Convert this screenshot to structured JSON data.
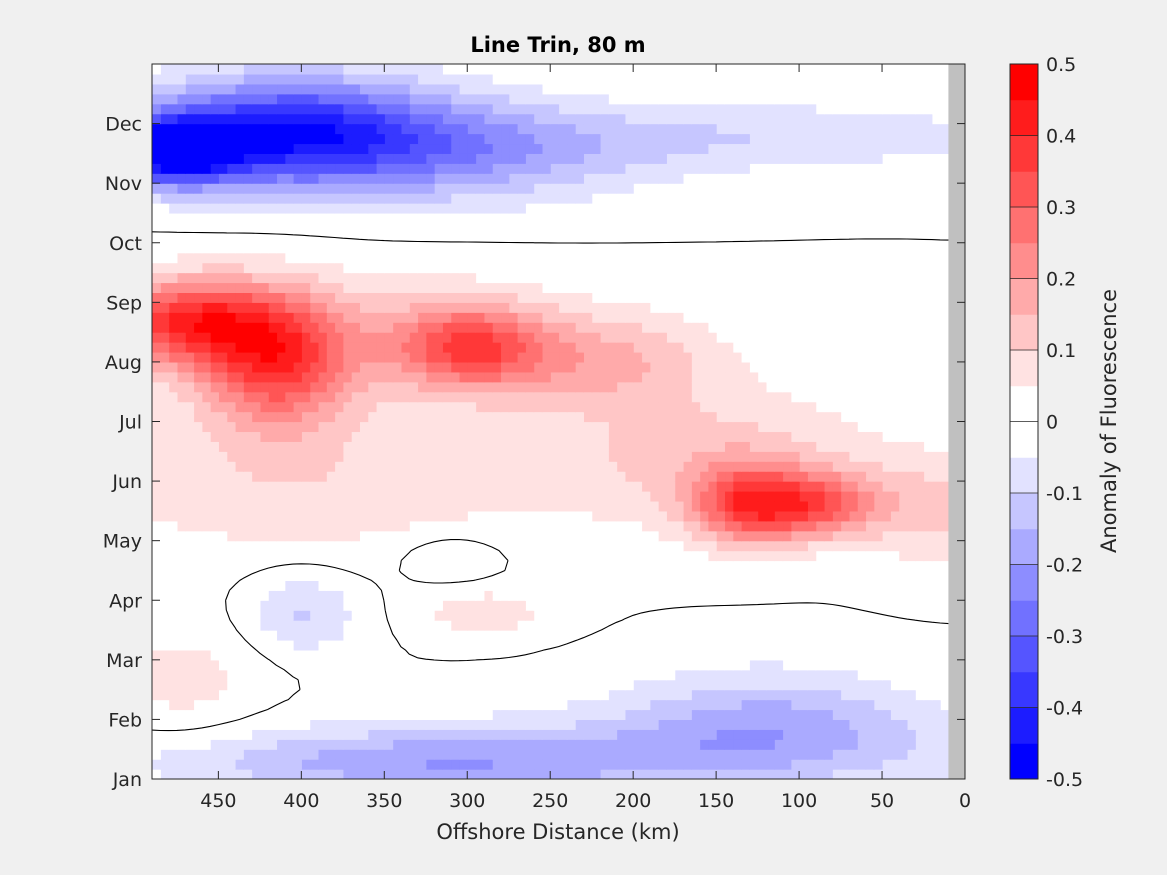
{
  "chart_data": {
    "type": "heatmap",
    "title": "Line Trin, 80 m",
    "xlabel": "Offshore Distance (km)",
    "ylabel": "",
    "x_reversed": true,
    "xlim": [
      0,
      490
    ],
    "x_ticks": [
      450,
      400,
      350,
      300,
      250,
      200,
      150,
      100,
      50,
      0
    ],
    "y_ticks": [
      "Jan",
      "Feb",
      "Mar",
      "Apr",
      "May",
      "Jun",
      "Jul",
      "Aug",
      "Sep",
      "Oct",
      "Nov",
      "Dec"
    ],
    "ylim_months": [
      1,
      13
    ],
    "colorbar": {
      "label": "Anomaly of Fluorescence",
      "range": [
        -0.5,
        0.5
      ],
      "tick_values": [
        0.5,
        0.4,
        0.3,
        0.2,
        0.1,
        0,
        -0.1,
        -0.2,
        -0.3,
        -0.4,
        -0.5
      ],
      "tick_labels": [
        "0.5",
        "0.4",
        "0.3",
        "0.2",
        "0.1",
        "0",
        "-0.1",
        "-0.2",
        "-0.3",
        "-0.4",
        "-0.5"
      ],
      "levels": [
        -0.5,
        -0.45,
        -0.4,
        -0.35,
        -0.3,
        -0.25,
        -0.2,
        -0.15,
        -0.1,
        -0.05,
        0.05,
        0.1,
        0.15,
        0.2,
        0.25,
        0.3,
        0.35,
        0.4,
        0.45,
        0.5
      ],
      "colors": [
        "#0000ff",
        "#1c1cff",
        "#3838ff",
        "#5555ff",
        "#7171ff",
        "#8d8dff",
        "#aaaaff",
        "#c6c6ff",
        "#e2e2ff",
        "#ffffff",
        "#ffe2e2",
        "#ffc6c6",
        "#ffaaaa",
        "#ff8d8d",
        "#ff7171",
        "#ff5555",
        "#ff3838",
        "#ff1c1c",
        "#ff0000"
      ]
    },
    "no_data_band_km": [
      0,
      10
    ],
    "zero_contour": true,
    "features": [
      {
        "x": 480,
        "y": 11.55,
        "value": -0.45,
        "sx": 40,
        "sy": 0.55
      },
      {
        "x": 420,
        "y": 11.85,
        "value": -0.28,
        "sx": 80,
        "sy": 0.9
      },
      {
        "x": 370,
        "y": 11.9,
        "value": -0.17,
        "sx": 100,
        "sy": 0.9
      },
      {
        "x": 300,
        "y": 11.4,
        "value": -0.13,
        "sx": 110,
        "sy": 0.8
      },
      {
        "x": 130,
        "y": 11.8,
        "value": -0.09,
        "sx": 180,
        "sy": 0.6
      },
      {
        "x": 470,
        "y": 8.7,
        "value": 0.32,
        "sx": 50,
        "sy": 0.7
      },
      {
        "x": 415,
        "y": 8.0,
        "value": 0.32,
        "sx": 45,
        "sy": 1.1
      },
      {
        "x": 300,
        "y": 8.25,
        "value": 0.28,
        "sx": 45,
        "sy": 0.7
      },
      {
        "x": 380,
        "y": 8.5,
        "value": 0.1,
        "sx": 150,
        "sy": 1.0
      },
      {
        "x": 220,
        "y": 8.0,
        "value": 0.14,
        "sx": 70,
        "sy": 0.8
      },
      {
        "x": 130,
        "y": 5.6,
        "value": 0.32,
        "sx": 35,
        "sy": 0.65
      },
      {
        "x": 85,
        "y": 5.6,
        "value": 0.24,
        "sx": 35,
        "sy": 0.55
      },
      {
        "x": 150,
        "y": 6.4,
        "value": 0.12,
        "sx": 100,
        "sy": 1.1
      },
      {
        "x": 20,
        "y": 5.5,
        "value": 0.11,
        "sx": 40,
        "sy": 0.9
      },
      {
        "x": 400,
        "y": 6.0,
        "value": 0.09,
        "sx": 150,
        "sy": 1.3
      },
      {
        "x": 470,
        "y": 2.6,
        "value": 0.07,
        "sx": 50,
        "sy": 1.1
      },
      {
        "x": 290,
        "y": 3.8,
        "value": 0.08,
        "sx": 40,
        "sy": 0.4
      },
      {
        "x": 320,
        "y": 1.25,
        "value": -0.14,
        "sx": 150,
        "sy": 0.5
      },
      {
        "x": 120,
        "y": 2.0,
        "value": -0.14,
        "sx": 90,
        "sy": 0.9
      },
      {
        "x": 400,
        "y": 3.8,
        "value": -0.11,
        "sx": 35,
        "sy": 0.7
      },
      {
        "x": 310,
        "y": 4.7,
        "value": -0.07,
        "sx": 30,
        "sy": 0.4
      },
      {
        "x": 200,
        "y": 1.5,
        "value": -0.08,
        "sx": 300,
        "sy": 0.7
      }
    ]
  }
}
